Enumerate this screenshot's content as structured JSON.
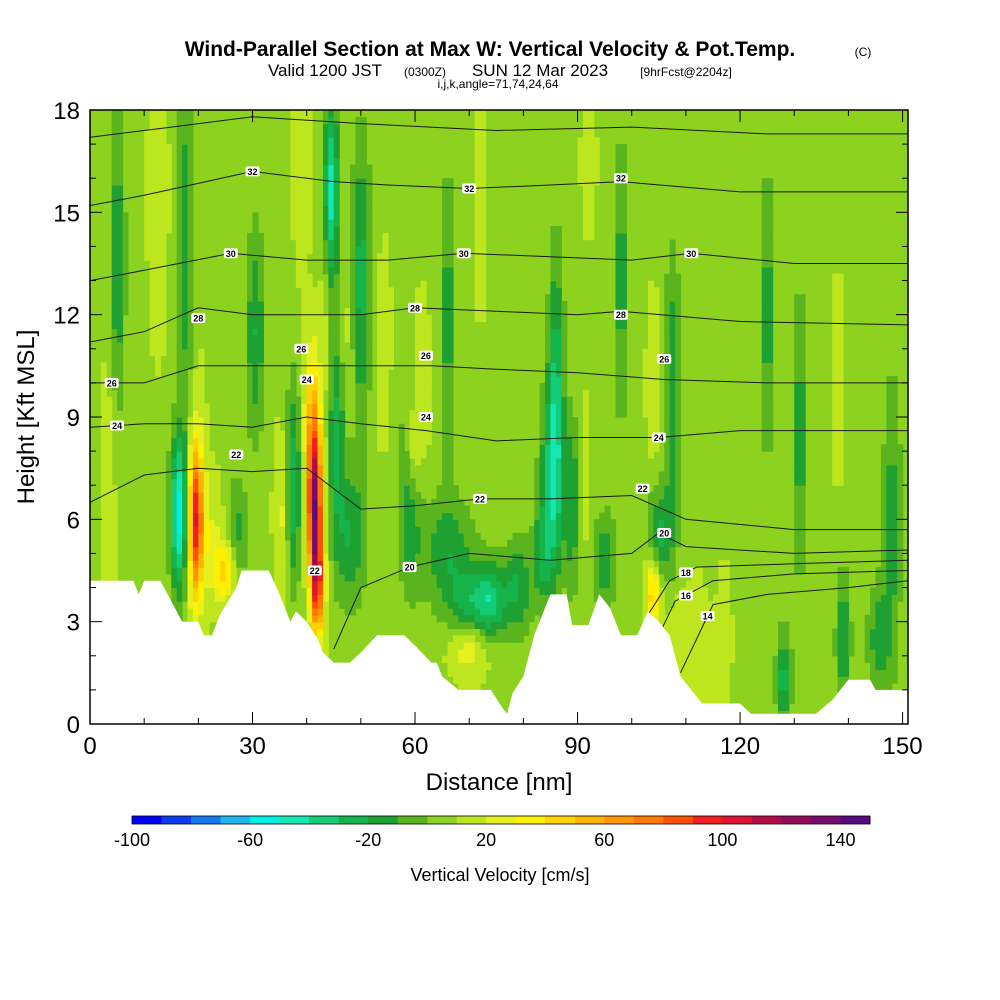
{
  "chart_data": {
    "type": "heatmap",
    "title": "Wind-Parallel Section at Max W: Vertical Velocity & Pot.Temp.",
    "title_mark": "(C)",
    "subtitle_valid": "Valid 1200 JST",
    "subtitle_z": "(0300Z)",
    "subtitle_date": "SUN 12 Mar 2023",
    "subtitle_fcst": "[9hrFcst@2204z]",
    "subtitle_indices": "i,j,k,angle=71,74,24,64",
    "xlabel": "Distance [nm]",
    "ylabel": "Height [Kft MSL]",
    "xlim": [
      0,
      151
    ],
    "ylim": [
      0,
      18
    ],
    "x_ticks": [
      0,
      30,
      60,
      90,
      120,
      150
    ],
    "x_tick_labels": [
      "0",
      "30",
      "60",
      "90",
      "120",
      "150"
    ],
    "y_ticks": [
      0,
      3,
      6,
      9,
      12,
      15,
      18
    ],
    "y_tick_labels": [
      "0",
      "3",
      "6",
      "9",
      "12",
      "15",
      "18"
    ],
    "background_value": 8,
    "colorbar": {
      "label": "Vertical Velocity [cm/s]",
      "min": -100,
      "max": 150,
      "step": 10,
      "tick_values": [
        -100,
        -60,
        -20,
        20,
        60,
        100,
        140
      ],
      "tick_labels": [
        "-100",
        "-60",
        "-20",
        "20",
        "60",
        "100",
        "140"
      ],
      "colors": [
        "#0000ff",
        "#0a3cf0",
        "#1478f0",
        "#1eb4f0",
        "#00f0e6",
        "#14e6b4",
        "#14cc78",
        "#14b44b",
        "#1ea032",
        "#5ab41e",
        "#8cd21e",
        "#bee61e",
        "#e6f01e",
        "#fff000",
        "#ffd200",
        "#ffb400",
        "#ff9600",
        "#ff7800",
        "#ff5000",
        "#f01e1e",
        "#dc1432",
        "#b40a46",
        "#960a5a",
        "#780a6e",
        "#5a0a80"
      ]
    },
    "terrain_kft": [
      {
        "x": 0,
        "y": 4.2
      },
      {
        "x": 8,
        "y": 4.2
      },
      {
        "x": 9,
        "y": 3.8
      },
      {
        "x": 10,
        "y": 4.2
      },
      {
        "x": 13,
        "y": 4.2
      },
      {
        "x": 15,
        "y": 3.6
      },
      {
        "x": 17,
        "y": 3.0
      },
      {
        "x": 20,
        "y": 3.0
      },
      {
        "x": 21,
        "y": 2.6
      },
      {
        "x": 22.5,
        "y": 2.6
      },
      {
        "x": 24,
        "y": 3.2
      },
      {
        "x": 27,
        "y": 4.0
      },
      {
        "x": 28,
        "y": 4.5
      },
      {
        "x": 33,
        "y": 4.5
      },
      {
        "x": 35,
        "y": 3.8
      },
      {
        "x": 37,
        "y": 3.0
      },
      {
        "x": 38,
        "y": 3.3
      },
      {
        "x": 40,
        "y": 3.0
      },
      {
        "x": 42,
        "y": 2.5
      },
      {
        "x": 43,
        "y": 2.1
      },
      {
        "x": 45,
        "y": 1.8
      },
      {
        "x": 48,
        "y": 1.8
      },
      {
        "x": 50,
        "y": 2.1
      },
      {
        "x": 53,
        "y": 2.6
      },
      {
        "x": 58,
        "y": 2.6
      },
      {
        "x": 60,
        "y": 2.3
      },
      {
        "x": 63,
        "y": 1.8
      },
      {
        "x": 64,
        "y": 1.8
      },
      {
        "x": 65,
        "y": 1.4
      },
      {
        "x": 68,
        "y": 1.0
      },
      {
        "x": 71,
        "y": 1.0
      },
      {
        "x": 74,
        "y": 1.0
      },
      {
        "x": 76,
        "y": 0.5
      },
      {
        "x": 77,
        "y": 0.3
      },
      {
        "x": 78,
        "y": 0.9
      },
      {
        "x": 80,
        "y": 1.4
      },
      {
        "x": 82,
        "y": 2.6
      },
      {
        "x": 84,
        "y": 3.4
      },
      {
        "x": 85,
        "y": 3.8
      },
      {
        "x": 88,
        "y": 3.8
      },
      {
        "x": 89,
        "y": 2.9
      },
      {
        "x": 92,
        "y": 2.9
      },
      {
        "x": 94,
        "y": 3.8
      },
      {
        "x": 96,
        "y": 3.4
      },
      {
        "x": 98,
        "y": 2.6
      },
      {
        "x": 101,
        "y": 2.6
      },
      {
        "x": 103,
        "y": 3.3
      },
      {
        "x": 105,
        "y": 3.0
      },
      {
        "x": 107,
        "y": 2.6
      },
      {
        "x": 109,
        "y": 1.4
      },
      {
        "x": 111,
        "y": 1.0
      },
      {
        "x": 113,
        "y": 0.6
      },
      {
        "x": 116,
        "y": 0.6
      },
      {
        "x": 120,
        "y": 0.6
      },
      {
        "x": 122,
        "y": 0.3
      },
      {
        "x": 134,
        "y": 0.3
      },
      {
        "x": 137,
        "y": 0.7
      },
      {
        "x": 140,
        "y": 1.3
      },
      {
        "x": 144,
        "y": 1.3
      },
      {
        "x": 145,
        "y": 1.0
      },
      {
        "x": 151,
        "y": 1.0
      }
    ],
    "vv_features": [
      {
        "x": 16.5,
        "y": 6.2,
        "sx": 1.2,
        "sy": 1.6,
        "v": -55
      },
      {
        "x": 17.5,
        "y": 14.0,
        "sx": 1.0,
        "sy": 3.2,
        "v": -20
      },
      {
        "x": 19.5,
        "y": 6.0,
        "sx": 1.0,
        "sy": 1.6,
        "v": 100
      },
      {
        "x": 12.5,
        "y": 15.5,
        "sx": 1.2,
        "sy": 3.0,
        "v": 18
      },
      {
        "x": 20.0,
        "y": 10.5,
        "sx": 1.0,
        "sy": 2.5,
        "v": 10
      },
      {
        "x": 22.5,
        "y": 5.5,
        "sx": 2.0,
        "sy": 1.2,
        "v": 20
      },
      {
        "x": 25.0,
        "y": 4.5,
        "sx": 1.5,
        "sy": 0.6,
        "v": 45
      },
      {
        "x": 27.0,
        "y": 5.5,
        "sx": 1.4,
        "sy": 1.2,
        "v": -15
      },
      {
        "x": 30.5,
        "y": 11.5,
        "sx": 1.2,
        "sy": 2.2,
        "v": -20
      },
      {
        "x": 35.5,
        "y": 6.3,
        "sx": 1.0,
        "sy": 1.6,
        "v": 25
      },
      {
        "x": 37.5,
        "y": 7.0,
        "sx": 1.0,
        "sy": 2.0,
        "v": -30
      },
      {
        "x": 41.5,
        "y": 6.3,
        "sx": 0.9,
        "sy": 1.5,
        "v": 130
      },
      {
        "x": 41.0,
        "y": 9.0,
        "sx": 1.0,
        "sy": 1.5,
        "v": 50
      },
      {
        "x": 42.0,
        "y": 4.0,
        "sx": 0.8,
        "sy": 1.0,
        "v": 80
      },
      {
        "x": 44.5,
        "y": 15.5,
        "sx": 1.0,
        "sy": 2.0,
        "v": -45
      },
      {
        "x": 43.5,
        "y": 12.5,
        "sx": 0.9,
        "sy": 2.0,
        "v": 18
      },
      {
        "x": 45.5,
        "y": 8.5,
        "sx": 1.0,
        "sy": 2.0,
        "v": -25
      },
      {
        "x": 47.5,
        "y": 11.5,
        "sx": 1.0,
        "sy": 2.0,
        "v": 15
      },
      {
        "x": 48.0,
        "y": 5.5,
        "sx": 2.0,
        "sy": 1.5,
        "v": -20
      },
      {
        "x": 50.0,
        "y": 13.0,
        "sx": 1.2,
        "sy": 3.0,
        "v": -25
      },
      {
        "x": 54.0,
        "y": 11.0,
        "sx": 1.5,
        "sy": 3.0,
        "v": 12
      },
      {
        "x": 59.0,
        "y": 6.8,
        "sx": 1.5,
        "sy": 2.0,
        "v": -20
      },
      {
        "x": 59.5,
        "y": 8.0,
        "sx": 1.0,
        "sy": 1.0,
        "v": 30
      },
      {
        "x": 61.0,
        "y": 9.5,
        "sx": 1.2,
        "sy": 2.0,
        "v": 18
      },
      {
        "x": 66.0,
        "y": 5.0,
        "sx": 3.5,
        "sy": 1.2,
        "v": -18
      },
      {
        "x": 70.0,
        "y": 2.3,
        "sx": 2.5,
        "sy": 0.6,
        "v": 30
      },
      {
        "x": 70.0,
        "y": 3.5,
        "sx": 2.5,
        "sy": 0.7,
        "v": -20
      },
      {
        "x": 74.0,
        "y": 3.6,
        "sx": 2.0,
        "sy": 0.8,
        "v": -30
      },
      {
        "x": 79.0,
        "y": 4.0,
        "sx": 2.0,
        "sy": 1.0,
        "v": -20
      },
      {
        "x": 83.5,
        "y": 5.0,
        "sx": 1.2,
        "sy": 1.0,
        "v": -15
      },
      {
        "x": 86.0,
        "y": 9.5,
        "sx": 1.0,
        "sy": 3.0,
        "v": -30
      },
      {
        "x": 85.0,
        "y": 7.0,
        "sx": 1.5,
        "sy": 2.0,
        "v": -25
      },
      {
        "x": 89.0,
        "y": 6.5,
        "sx": 1.0,
        "sy": 1.8,
        "v": -20
      },
      {
        "x": 91.0,
        "y": 7.0,
        "sx": 1.0,
        "sy": 2.0,
        "v": 15
      },
      {
        "x": 92.0,
        "y": 16.5,
        "sx": 1.0,
        "sy": 1.5,
        "v": 15
      },
      {
        "x": 95.0,
        "y": 4.8,
        "sx": 1.5,
        "sy": 1.0,
        "v": -18
      },
      {
        "x": 104.0,
        "y": 10.0,
        "sx": 1.0,
        "sy": 2.0,
        "v": 15
      },
      {
        "x": 104.0,
        "y": 3.9,
        "sx": 1.0,
        "sy": 0.8,
        "v": 50
      },
      {
        "x": 105.0,
        "y": 5.5,
        "sx": 1.5,
        "sy": 1.0,
        "v": -25
      },
      {
        "x": 107.5,
        "y": 9.5,
        "sx": 1.0,
        "sy": 3.0,
        "v": -20
      },
      {
        "x": 108.5,
        "y": 2.5,
        "sx": 1.5,
        "sy": 1.0,
        "v": 20
      },
      {
        "x": 112.0,
        "y": 2.8,
        "sx": 1.0,
        "sy": 1.2,
        "v": 15
      },
      {
        "x": 114.0,
        "y": 2.0,
        "sx": 1.0,
        "sy": 1.0,
        "v": 15
      },
      {
        "x": 117.0,
        "y": 2.5,
        "sx": 1.0,
        "sy": 1.5,
        "v": 15
      },
      {
        "x": 128.0,
        "y": 1.3,
        "sx": 1.0,
        "sy": 1.0,
        "v": -25
      },
      {
        "x": 131.0,
        "y": 8.5,
        "sx": 1.0,
        "sy": 3.0,
        "v": -15
      },
      {
        "x": 139.0,
        "y": 2.5,
        "sx": 1.0,
        "sy": 1.5,
        "v": -18
      },
      {
        "x": 145.5,
        "y": 2.5,
        "sx": 1.5,
        "sy": 1.2,
        "v": -15
      },
      {
        "x": 148.0,
        "y": 6.0,
        "sx": 1.2,
        "sy": 3.0,
        "v": -15
      },
      {
        "x": 3.5,
        "y": 7.0,
        "sx": 1.0,
        "sy": 4.0,
        "v": 15
      },
      {
        "x": 5.0,
        "y": 13.5,
        "sx": 1.0,
        "sy": 3.0,
        "v": -20
      },
      {
        "x": 39.0,
        "y": 16.0,
        "sx": 1.0,
        "sy": 2.0,
        "v": 18
      },
      {
        "x": 66.0,
        "y": 12.0,
        "sx": 1.0,
        "sy": 3.0,
        "v": -15
      },
      {
        "x": 72.0,
        "y": 15.0,
        "sx": 1.0,
        "sy": 3.0,
        "v": 12
      },
      {
        "x": 98.0,
        "y": 13.0,
        "sx": 1.0,
        "sy": 3.0,
        "v": -15
      },
      {
        "x": 125.0,
        "y": 12.0,
        "sx": 1.0,
        "sy": 3.0,
        "v": -15
      },
      {
        "x": 138.0,
        "y": 10.0,
        "sx": 1.0,
        "sy": 3.0,
        "v": 12
      }
    ],
    "theta_contours": [
      {
        "theta": 14,
        "label": "14",
        "label_x": 114,
        "pts": [
          [
            109,
            1.5
          ],
          [
            115,
            3.5
          ],
          [
            125,
            3.8
          ],
          [
            140,
            4.0
          ],
          [
            151,
            4.2
          ]
        ]
      },
      {
        "theta": 16,
        "label": "16",
        "label_x": 110,
        "pts": [
          [
            105,
            2.6
          ],
          [
            108,
            3.6
          ],
          [
            115,
            4.2
          ],
          [
            130,
            4.4
          ],
          [
            151,
            4.5
          ]
        ]
      },
      {
        "theta": 18,
        "label": "18",
        "label_x": 110,
        "pts": [
          [
            103,
            3.2
          ],
          [
            107,
            4.2
          ],
          [
            112,
            4.6
          ],
          [
            130,
            4.7
          ],
          [
            151,
            4.8
          ]
        ]
      },
      {
        "theta": 20,
        "label": "20",
        "label_x": 59,
        "pts": [
          [
            45,
            2.2
          ],
          [
            50,
            4.0
          ],
          [
            59,
            4.6
          ],
          [
            70,
            5.0
          ],
          [
            85,
            4.8
          ],
          [
            100,
            5.0
          ],
          [
            105,
            5.6
          ],
          [
            110,
            5.2
          ],
          [
            130,
            5.0
          ],
          [
            151,
            5.1
          ]
        ]
      },
      {
        "theta": 22,
        "label": "22",
        "label_x": 72,
        "pts": [
          [
            0,
            6.5
          ],
          [
            10,
            7.3
          ],
          [
            20,
            7.5
          ],
          [
            30,
            7.4
          ],
          [
            40,
            7.5
          ],
          [
            50,
            6.3
          ],
          [
            60,
            6.4
          ],
          [
            72,
            6.6
          ],
          [
            85,
            6.6
          ],
          [
            100,
            6.7
          ],
          [
            110,
            6.0
          ],
          [
            130,
            5.7
          ],
          [
            151,
            5.7
          ]
        ]
      },
      {
        "theta": 24,
        "label": "24",
        "label_x": 5,
        "pts": [
          [
            0,
            8.7
          ],
          [
            10,
            8.8
          ],
          [
            20,
            8.8
          ],
          [
            30,
            8.7
          ],
          [
            40,
            9.0
          ],
          [
            50,
            8.8
          ],
          [
            62,
            8.6
          ],
          [
            75,
            8.3
          ],
          [
            90,
            8.4
          ],
          [
            105,
            8.4
          ],
          [
            120,
            8.6
          ],
          [
            151,
            8.6
          ]
        ]
      },
      {
        "theta": 26,
        "label": "26",
        "label_x": 4,
        "pts": [
          [
            0,
            10.0
          ],
          [
            10,
            10.0
          ],
          [
            20,
            10.5
          ],
          [
            30,
            10.5
          ],
          [
            40,
            10.5
          ],
          [
            50,
            10.5
          ],
          [
            63,
            10.5
          ],
          [
            75,
            10.4
          ],
          [
            90,
            10.3
          ],
          [
            106,
            10.1
          ],
          [
            125,
            10.0
          ],
          [
            151,
            10.0
          ]
        ]
      },
      {
        "theta": 28,
        "label": "28",
        "label_x": 60,
        "pts": [
          [
            0,
            11.2
          ],
          [
            10,
            11.5
          ],
          [
            20,
            12.2
          ],
          [
            30,
            12.0
          ],
          [
            40,
            12.0
          ],
          [
            50,
            12.0
          ],
          [
            60,
            12.2
          ],
          [
            75,
            12.1
          ],
          [
            90,
            12.0
          ],
          [
            98,
            12.1
          ],
          [
            120,
            11.8
          ],
          [
            151,
            11.7
          ]
        ]
      },
      {
        "theta": 30,
        "label": "30",
        "label_x": 69,
        "pts": [
          [
            0,
            13.0
          ],
          [
            10,
            13.3
          ],
          [
            26,
            13.8
          ],
          [
            40,
            13.6
          ],
          [
            55,
            13.6
          ],
          [
            69,
            13.8
          ],
          [
            85,
            13.7
          ],
          [
            100,
            13.6
          ],
          [
            111,
            13.8
          ],
          [
            130,
            13.5
          ],
          [
            151,
            13.5
          ]
        ]
      },
      {
        "theta": 32,
        "label": "32",
        "label_x": 70,
        "pts": [
          [
            0,
            15.2
          ],
          [
            10,
            15.5
          ],
          [
            30,
            16.2
          ],
          [
            45,
            15.9
          ],
          [
            55,
            15.8
          ],
          [
            70,
            15.7
          ],
          [
            85,
            15.8
          ],
          [
            98,
            15.9
          ],
          [
            120,
            15.6
          ],
          [
            151,
            15.6
          ]
        ]
      },
      {
        "theta": 34,
        "label": "",
        "label_x": 0,
        "pts": [
          [
            0,
            17.2
          ],
          [
            15,
            17.5
          ],
          [
            30,
            17.8
          ],
          [
            50,
            17.6
          ],
          [
            75,
            17.4
          ],
          [
            100,
            17.5
          ],
          [
            125,
            17.3
          ],
          [
            151,
            17.3
          ]
        ]
      }
    ],
    "extra_contour_labels": [
      {
        "label": "22",
        "x": 27,
        "y": 7.9
      },
      {
        "label": "28",
        "x": 20,
        "y": 11.9
      },
      {
        "label": "30",
        "x": 26,
        "y": 13.8
      },
      {
        "label": "32",
        "x": 30,
        "y": 16.2
      },
      {
        "label": "24",
        "x": 40,
        "y": 10.1
      },
      {
        "label": "26",
        "x": 39,
        "y": 11.0
      },
      {
        "label": "22",
        "x": 41.5,
        "y": 4.5
      },
      {
        "label": "26",
        "x": 62,
        "y": 10.8
      },
      {
        "label": "24",
        "x": 62,
        "y": 9.0
      },
      {
        "label": "28",
        "x": 98,
        "y": 12.0
      },
      {
        "label": "32",
        "x": 98,
        "y": 16.0
      },
      {
        "label": "26",
        "x": 106,
        "y": 10.7
      },
      {
        "label": "24",
        "x": 105,
        "y": 8.4
      },
      {
        "label": "22",
        "x": 102,
        "y": 6.9
      },
      {
        "label": "20",
        "x": 106,
        "y": 5.6
      },
      {
        "label": "30",
        "x": 111,
        "y": 13.8
      }
    ]
  }
}
